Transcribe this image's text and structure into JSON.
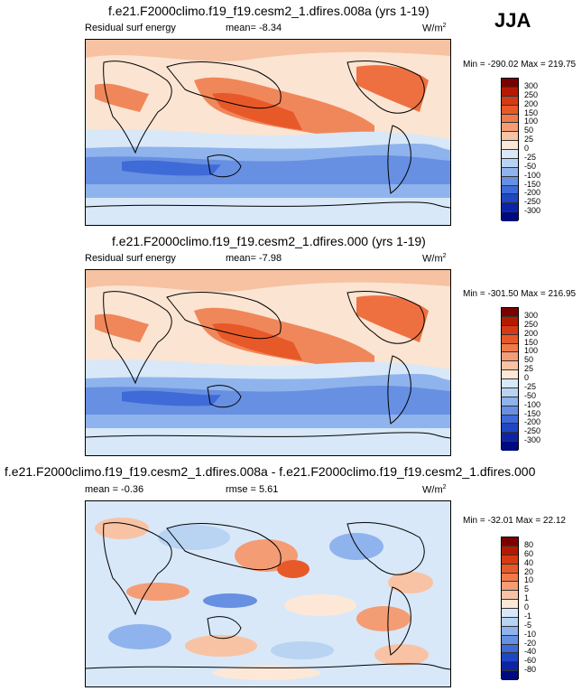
{
  "season": "JJA",
  "panels": [
    {
      "title": "f.e21.F2000climo.f19_f19.cesm2_1.dfires.008a (yrs 1-19)",
      "left_label": "Residual surf energy",
      "center_label": "mean=  -8.34",
      "units": "W/m",
      "units_sup": "2",
      "minmax": "Min = -290.02 Max = 219.75",
      "colorbar": {
        "labels": [
          "300",
          "250",
          "200",
          "150",
          "100",
          "50",
          "25",
          "0",
          "-25",
          "-50",
          "-100",
          "-150",
          "-200",
          "-250",
          "-300"
        ],
        "colors": [
          "#7a0000",
          "#b41a00",
          "#d63a14",
          "#e8592a",
          "#f07a4a",
          "#f49c74",
          "#f8c3a4",
          "#fde8d8",
          "#d8e8f8",
          "#b9d3f3",
          "#8fb3ec",
          "#6790e2",
          "#3f6bd8",
          "#1f46c4",
          "#0d24a6",
          "#000a80"
        ]
      }
    },
    {
      "title": "f.e21.F2000climo.f19_f19.cesm2_1.dfires.000 (yrs 1-19)",
      "left_label": "Residual surf energy",
      "center_label": "mean=  -7.98",
      "units": "W/m",
      "units_sup": "2",
      "minmax": "Min = -301.50 Max = 216.95",
      "colorbar": {
        "labels": [
          "300",
          "250",
          "200",
          "150",
          "100",
          "50",
          "25",
          "0",
          "-25",
          "-50",
          "-100",
          "-150",
          "-200",
          "-250",
          "-300"
        ],
        "colors": [
          "#7a0000",
          "#b41a00",
          "#d63a14",
          "#e8592a",
          "#f07a4a",
          "#f49c74",
          "#f8c3a4",
          "#fde8d8",
          "#d8e8f8",
          "#b9d3f3",
          "#8fb3ec",
          "#6790e2",
          "#3f6bd8",
          "#1f46c4",
          "#0d24a6",
          "#000a80"
        ]
      }
    },
    {
      "title": "f.e21.F2000climo.f19_f19.cesm2_1.dfires.008a - f.e21.F2000climo.f19_f19.cesm2_1.dfires.000",
      "left_label": "mean =  -0.36",
      "center_label": "rmse =  5.61",
      "units": "W/m",
      "units_sup": "2",
      "minmax": "Min = -32.01 Max =  22.12",
      "colorbar": {
        "labels": [
          "80",
          "60",
          "40",
          "20",
          "10",
          "5",
          "1",
          "0",
          "-1",
          "-5",
          "-10",
          "-20",
          "-40",
          "-60",
          "-80"
        ],
        "colors": [
          "#7a0000",
          "#b41a00",
          "#d63a14",
          "#e8592a",
          "#f07a4a",
          "#f49c74",
          "#f8c3a4",
          "#fde8d8",
          "#d8e8f8",
          "#b9d3f3",
          "#8fb3ec",
          "#6790e2",
          "#3f6bd8",
          "#1f46c4",
          "#0d24a6",
          "#000a80"
        ]
      }
    }
  ]
}
